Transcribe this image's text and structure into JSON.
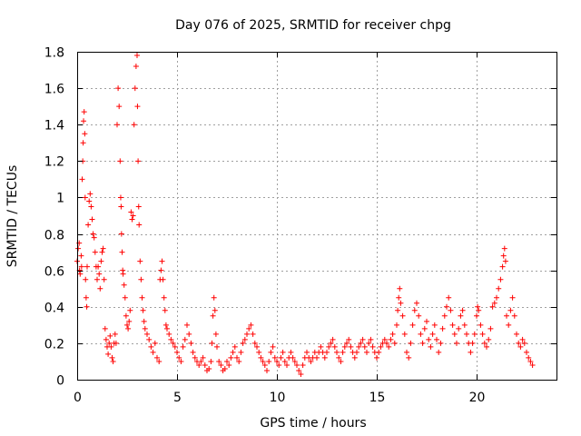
{
  "chart_data": {
    "type": "scatter",
    "title": "Day 076 of 2025, SRMTID for receiver chpg",
    "xlabel": "GPS time / hours",
    "ylabel": "SRMTID / TECUs",
    "xlim": [
      0,
      24
    ],
    "ylim": [
      0,
      1.8
    ],
    "xticks": [
      0,
      5,
      10,
      15,
      20
    ],
    "xtick_labels": [
      "0",
      "5",
      "10",
      "15",
      "20"
    ],
    "yticks": [
      0,
      0.2,
      0.4,
      0.6,
      0.8,
      1.0,
      1.2,
      1.4,
      1.6,
      1.8
    ],
    "ytick_labels": [
      "0",
      "0.2",
      "0.4",
      "0.6",
      "0.8",
      "1",
      "1.2",
      "1.4",
      "1.6",
      "1.8"
    ],
    "grid": true,
    "marker": "+",
    "color": "#ff0000",
    "series": [
      {
        "name": "SRMTID",
        "points": [
          [
            0.0,
            0.65
          ],
          [
            0.05,
            0.72
          ],
          [
            0.1,
            0.75
          ],
          [
            0.12,
            0.6
          ],
          [
            0.15,
            0.58
          ],
          [
            0.2,
            0.68
          ],
          [
            0.22,
            0.62
          ],
          [
            0.25,
            1.1
          ],
          [
            0.28,
            1.2
          ],
          [
            0.3,
            1.3
          ],
          [
            0.32,
            1.42
          ],
          [
            0.35,
            1.47
          ],
          [
            0.38,
            1.35
          ],
          [
            0.4,
            1.0
          ],
          [
            0.42,
            0.55
          ],
          [
            0.45,
            0.45
          ],
          [
            0.48,
            0.4
          ],
          [
            0.5,
            0.62
          ],
          [
            0.55,
            0.85
          ],
          [
            0.6,
            0.98
          ],
          [
            0.65,
            1.02
          ],
          [
            0.7,
            0.95
          ],
          [
            0.75,
            0.88
          ],
          [
            0.8,
            0.8
          ],
          [
            0.85,
            0.78
          ],
          [
            0.9,
            0.7
          ],
          [
            0.95,
            0.62
          ],
          [
            1.0,
            0.55
          ],
          [
            1.05,
            0.62
          ],
          [
            1.1,
            0.58
          ],
          [
            1.15,
            0.5
          ],
          [
            1.2,
            0.65
          ],
          [
            1.25,
            0.7
          ],
          [
            1.3,
            0.72
          ],
          [
            1.35,
            0.55
          ],
          [
            1.4,
            0.28
          ],
          [
            1.45,
            0.22
          ],
          [
            1.5,
            0.18
          ],
          [
            1.55,
            0.14
          ],
          [
            1.6,
            0.2
          ],
          [
            1.65,
            0.24
          ],
          [
            1.7,
            0.18
          ],
          [
            1.75,
            0.12
          ],
          [
            1.8,
            0.1
          ],
          [
            1.85,
            0.2
          ],
          [
            1.9,
            0.25
          ],
          [
            1.95,
            0.2
          ],
          [
            2.0,
            1.4
          ],
          [
            2.05,
            1.6
          ],
          [
            2.1,
            1.5
          ],
          [
            2.15,
            1.2
          ],
          [
            2.18,
            1.0
          ],
          [
            2.2,
            0.95
          ],
          [
            2.22,
            0.8
          ],
          [
            2.25,
            0.7
          ],
          [
            2.28,
            0.6
          ],
          [
            2.3,
            0.58
          ],
          [
            2.35,
            0.52
          ],
          [
            2.4,
            0.45
          ],
          [
            2.45,
            0.35
          ],
          [
            2.5,
            0.3
          ],
          [
            2.55,
            0.28
          ],
          [
            2.6,
            0.32
          ],
          [
            2.65,
            0.38
          ],
          [
            2.7,
            0.92
          ],
          [
            2.75,
            0.88
          ],
          [
            2.8,
            0.9
          ],
          [
            2.85,
            1.4
          ],
          [
            2.9,
            1.6
          ],
          [
            2.95,
            1.72
          ],
          [
            3.0,
            1.78
          ],
          [
            3.02,
            1.5
          ],
          [
            3.05,
            1.2
          ],
          [
            3.08,
            0.95
          ],
          [
            3.1,
            0.85
          ],
          [
            3.15,
            0.65
          ],
          [
            3.2,
            0.55
          ],
          [
            3.25,
            0.45
          ],
          [
            3.3,
            0.38
          ],
          [
            3.35,
            0.32
          ],
          [
            3.4,
            0.28
          ],
          [
            3.5,
            0.25
          ],
          [
            3.6,
            0.22
          ],
          [
            3.7,
            0.18
          ],
          [
            3.8,
            0.15
          ],
          [
            3.9,
            0.2
          ],
          [
            4.0,
            0.12
          ],
          [
            4.1,
            0.1
          ],
          [
            4.15,
            0.55
          ],
          [
            4.2,
            0.6
          ],
          [
            4.25,
            0.65
          ],
          [
            4.3,
            0.55
          ],
          [
            4.35,
            0.45
          ],
          [
            4.4,
            0.38
          ],
          [
            4.45,
            0.3
          ],
          [
            4.5,
            0.28
          ],
          [
            4.6,
            0.25
          ],
          [
            4.7,
            0.22
          ],
          [
            4.8,
            0.2
          ],
          [
            4.9,
            0.18
          ],
          [
            5.0,
            0.15
          ],
          [
            5.1,
            0.12
          ],
          [
            5.2,
            0.1
          ],
          [
            5.3,
            0.18
          ],
          [
            5.4,
            0.22
          ],
          [
            5.5,
            0.3
          ],
          [
            5.6,
            0.25
          ],
          [
            5.7,
            0.2
          ],
          [
            5.8,
            0.15
          ],
          [
            5.9,
            0.12
          ],
          [
            6.0,
            0.1
          ],
          [
            6.1,
            0.08
          ],
          [
            6.2,
            0.1
          ],
          [
            6.3,
            0.12
          ],
          [
            6.4,
            0.08
          ],
          [
            6.5,
            0.05
          ],
          [
            6.6,
            0.06
          ],
          [
            6.7,
            0.1
          ],
          [
            6.75,
            0.2
          ],
          [
            6.8,
            0.35
          ],
          [
            6.85,
            0.45
          ],
          [
            6.9,
            0.38
          ],
          [
            6.95,
            0.25
          ],
          [
            7.0,
            0.18
          ],
          [
            7.1,
            0.1
          ],
          [
            7.2,
            0.08
          ],
          [
            7.3,
            0.05
          ],
          [
            7.4,
            0.06
          ],
          [
            7.5,
            0.1
          ],
          [
            7.6,
            0.08
          ],
          [
            7.7,
            0.12
          ],
          [
            7.8,
            0.15
          ],
          [
            7.9,
            0.18
          ],
          [
            8.0,
            0.12
          ],
          [
            8.1,
            0.1
          ],
          [
            8.2,
            0.15
          ],
          [
            8.3,
            0.2
          ],
          [
            8.4,
            0.22
          ],
          [
            8.5,
            0.25
          ],
          [
            8.6,
            0.28
          ],
          [
            8.7,
            0.3
          ],
          [
            8.8,
            0.25
          ],
          [
            8.9,
            0.2
          ],
          [
            9.0,
            0.18
          ],
          [
            9.1,
            0.15
          ],
          [
            9.2,
            0.12
          ],
          [
            9.3,
            0.1
          ],
          [
            9.4,
            0.08
          ],
          [
            9.5,
            0.05
          ],
          [
            9.6,
            0.1
          ],
          [
            9.7,
            0.15
          ],
          [
            9.8,
            0.18
          ],
          [
            9.9,
            0.12
          ],
          [
            10.0,
            0.1
          ],
          [
            10.1,
            0.08
          ],
          [
            10.2,
            0.12
          ],
          [
            10.3,
            0.15
          ],
          [
            10.4,
            0.1
          ],
          [
            10.5,
            0.08
          ],
          [
            10.6,
            0.12
          ],
          [
            10.7,
            0.15
          ],
          [
            10.8,
            0.12
          ],
          [
            10.9,
            0.1
          ],
          [
            11.0,
            0.08
          ],
          [
            11.1,
            0.05
          ],
          [
            11.2,
            0.03
          ],
          [
            11.3,
            0.08
          ],
          [
            11.4,
            0.12
          ],
          [
            11.5,
            0.15
          ],
          [
            11.6,
            0.12
          ],
          [
            11.7,
            0.1
          ],
          [
            11.8,
            0.12
          ],
          [
            11.9,
            0.15
          ],
          [
            12.0,
            0.12
          ],
          [
            12.1,
            0.15
          ],
          [
            12.2,
            0.18
          ],
          [
            12.3,
            0.15
          ],
          [
            12.4,
            0.12
          ],
          [
            12.5,
            0.15
          ],
          [
            12.6,
            0.18
          ],
          [
            12.7,
            0.2
          ],
          [
            12.8,
            0.22
          ],
          [
            12.9,
            0.18
          ],
          [
            13.0,
            0.15
          ],
          [
            13.1,
            0.12
          ],
          [
            13.2,
            0.1
          ],
          [
            13.3,
            0.15
          ],
          [
            13.4,
            0.18
          ],
          [
            13.5,
            0.2
          ],
          [
            13.6,
            0.22
          ],
          [
            13.7,
            0.18
          ],
          [
            13.8,
            0.15
          ],
          [
            13.9,
            0.12
          ],
          [
            14.0,
            0.15
          ],
          [
            14.1,
            0.18
          ],
          [
            14.2,
            0.2
          ],
          [
            14.3,
            0.22
          ],
          [
            14.4,
            0.18
          ],
          [
            14.5,
            0.15
          ],
          [
            14.6,
            0.2
          ],
          [
            14.7,
            0.22
          ],
          [
            14.8,
            0.18
          ],
          [
            14.9,
            0.15
          ],
          [
            15.0,
            0.12
          ],
          [
            15.1,
            0.15
          ],
          [
            15.2,
            0.18
          ],
          [
            15.3,
            0.2
          ],
          [
            15.4,
            0.22
          ],
          [
            15.5,
            0.2
          ],
          [
            15.6,
            0.18
          ],
          [
            15.7,
            0.22
          ],
          [
            15.8,
            0.25
          ],
          [
            15.9,
            0.2
          ],
          [
            16.0,
            0.3
          ],
          [
            16.05,
            0.38
          ],
          [
            16.1,
            0.45
          ],
          [
            16.15,
            0.5
          ],
          [
            16.2,
            0.42
          ],
          [
            16.3,
            0.35
          ],
          [
            16.4,
            0.25
          ],
          [
            16.5,
            0.15
          ],
          [
            16.6,
            0.12
          ],
          [
            16.7,
            0.2
          ],
          [
            16.8,
            0.3
          ],
          [
            16.9,
            0.38
          ],
          [
            17.0,
            0.42
          ],
          [
            17.1,
            0.35
          ],
          [
            17.2,
            0.25
          ],
          [
            17.3,
            0.2
          ],
          [
            17.4,
            0.28
          ],
          [
            17.5,
            0.32
          ],
          [
            17.6,
            0.22
          ],
          [
            17.7,
            0.18
          ],
          [
            17.8,
            0.25
          ],
          [
            17.9,
            0.3
          ],
          [
            18.0,
            0.22
          ],
          [
            18.1,
            0.15
          ],
          [
            18.2,
            0.2
          ],
          [
            18.3,
            0.28
          ],
          [
            18.4,
            0.35
          ],
          [
            18.5,
            0.4
          ],
          [
            18.6,
            0.45
          ],
          [
            18.7,
            0.38
          ],
          [
            18.8,
            0.3
          ],
          [
            18.9,
            0.25
          ],
          [
            19.0,
            0.2
          ],
          [
            19.1,
            0.28
          ],
          [
            19.2,
            0.35
          ],
          [
            19.3,
            0.38
          ],
          [
            19.4,
            0.3
          ],
          [
            19.5,
            0.25
          ],
          [
            19.6,
            0.2
          ],
          [
            19.7,
            0.15
          ],
          [
            19.8,
            0.2
          ],
          [
            19.9,
            0.25
          ],
          [
            20.0,
            0.35
          ],
          [
            20.05,
            0.4
          ],
          [
            20.1,
            0.38
          ],
          [
            20.2,
            0.3
          ],
          [
            20.3,
            0.25
          ],
          [
            20.4,
            0.2
          ],
          [
            20.5,
            0.18
          ],
          [
            20.6,
            0.22
          ],
          [
            20.7,
            0.28
          ],
          [
            20.8,
            0.4
          ],
          [
            20.9,
            0.42
          ],
          [
            21.0,
            0.45
          ],
          [
            21.1,
            0.5
          ],
          [
            21.2,
            0.55
          ],
          [
            21.3,
            0.62
          ],
          [
            21.35,
            0.68
          ],
          [
            21.4,
            0.72
          ],
          [
            21.45,
            0.65
          ],
          [
            21.5,
            0.35
          ],
          [
            21.6,
            0.3
          ],
          [
            21.7,
            0.38
          ],
          [
            21.8,
            0.45
          ],
          [
            21.9,
            0.35
          ],
          [
            22.0,
            0.25
          ],
          [
            22.1,
            0.2
          ],
          [
            22.2,
            0.18
          ],
          [
            22.3,
            0.22
          ],
          [
            22.4,
            0.2
          ],
          [
            22.5,
            0.15
          ],
          [
            22.6,
            0.12
          ],
          [
            22.7,
            0.1
          ],
          [
            22.8,
            0.08
          ]
        ]
      }
    ]
  }
}
